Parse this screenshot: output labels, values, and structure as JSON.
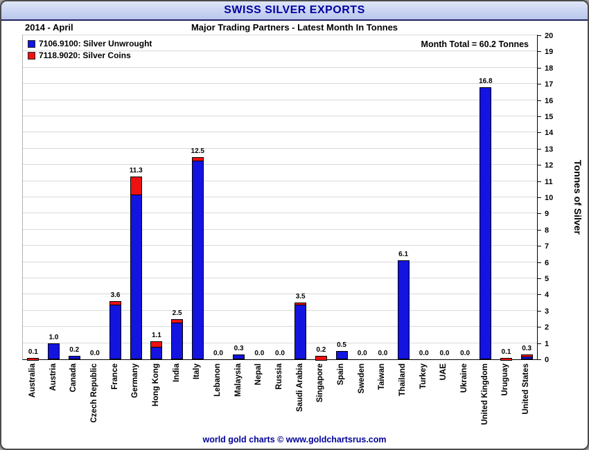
{
  "header": {
    "title": "SWISS SILVER EXPORTS"
  },
  "subheader": {
    "period": "2014 - April",
    "subtitle": "Major Trading Partners - Latest Month In Tonnes"
  },
  "legend": [
    {
      "label": "7106.9100: Silver Unwrought",
      "color": "#1414e0"
    },
    {
      "label": "7118.9020: Silver Coins",
      "color": "#ee1111"
    }
  ],
  "month_total": "Month Total = 60.2 Tonnes",
  "footer": "world gold charts © www.goldchartsrus.com",
  "chart_data": {
    "type": "bar",
    "stacked": true,
    "title": "Major Trading Partners - Latest Month In Tonnes",
    "ylabel": "Tonnes of Silver",
    "ylim": [
      0,
      20
    ],
    "ytick_step": 1,
    "grid": true,
    "legend_position": "top-left",
    "categories": [
      "Australia",
      "Austria",
      "Canada",
      "Czech Republic",
      "France",
      "Germany",
      "Hong Kong",
      "India",
      "Italy",
      "Lebanon",
      "Malaysia",
      "Nepal",
      "Russia",
      "Saudi Arabia",
      "Singapore",
      "Spain",
      "Sweden",
      "Taiwan",
      "Thailand",
      "Turkey",
      "UAE",
      "Ukraine",
      "United Kingdom",
      "Uruguay",
      "United States"
    ],
    "series": [
      {
        "name": "7106.9100: Silver Unwrought",
        "color": "#1414e0",
        "values": [
          0.0,
          1.0,
          0.2,
          0.0,
          3.4,
          10.2,
          0.8,
          2.3,
          12.3,
          0.0,
          0.3,
          0.0,
          0.0,
          3.4,
          0.0,
          0.5,
          0.0,
          0.0,
          6.1,
          0.0,
          0.0,
          0.0,
          16.8,
          0.0,
          0.2
        ]
      },
      {
        "name": "7118.9020: Silver Coins",
        "color": "#ee1111",
        "values": [
          0.1,
          0.0,
          0.0,
          0.0,
          0.2,
          1.1,
          0.3,
          0.2,
          0.2,
          0.0,
          0.0,
          0.0,
          0.0,
          0.1,
          0.2,
          0.0,
          0.0,
          0.0,
          0.0,
          0.0,
          0.0,
          0.0,
          0.0,
          0.1,
          0.1
        ]
      }
    ],
    "totals": [
      0.1,
      1.0,
      0.2,
      0.0,
      3.6,
      11.3,
      1.1,
      2.5,
      12.5,
      0.0,
      0.3,
      0.0,
      0.0,
      3.5,
      0.2,
      0.5,
      0.0,
      0.0,
      6.1,
      0.0,
      0.0,
      0.0,
      16.8,
      0.1,
      0.3
    ]
  }
}
